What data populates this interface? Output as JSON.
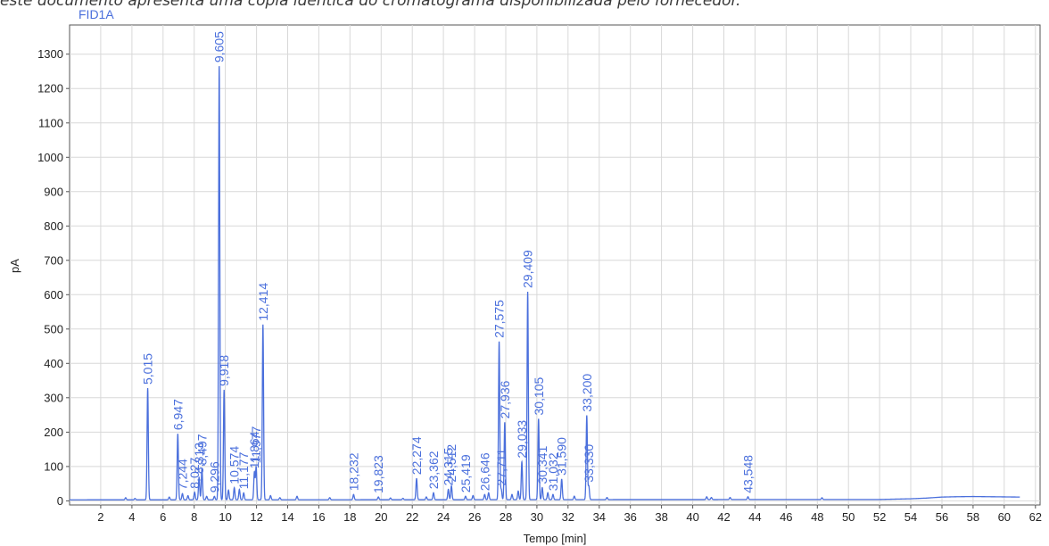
{
  "caption": "este documento apresenta uma cópia idêntica do cromatograma disponibilizada pelo fornecedor.",
  "colors": {
    "trace": "#4a6fdc",
    "grid": "#d8d8d8",
    "axis": "#555555",
    "text": "#222222"
  },
  "chart_data": {
    "type": "line",
    "series_label": "FID1A",
    "xlabel": "Tempo [min]",
    "ylabel": "pA",
    "xlim": [
      0,
      62.3
    ],
    "ylim": [
      -12,
      1385
    ],
    "grid": true,
    "x_ticks": [
      2,
      4,
      6,
      8,
      10,
      12,
      14,
      16,
      18,
      20,
      22,
      24,
      26,
      28,
      30,
      32,
      34,
      36,
      38,
      40,
      42,
      44,
      46,
      48,
      50,
      52,
      54,
      56,
      58,
      60,
      62
    ],
    "y_ticks": [
      0,
      100,
      200,
      300,
      400,
      500,
      600,
      700,
      800,
      900,
      1000,
      1100,
      1200,
      1300
    ],
    "baseline": [
      [
        0,
        3
      ],
      [
        52,
        4
      ],
      [
        54,
        6
      ],
      [
        55,
        8
      ],
      [
        56,
        11
      ],
      [
        57,
        12
      ],
      [
        58,
        12.5
      ],
      [
        59,
        12
      ],
      [
        61,
        11
      ]
    ],
    "peaks": [
      {
        "label": "5,015",
        "rt": 5.015,
        "height": 325
      },
      {
        "label": "6,947",
        "rt": 6.947,
        "height": 192
      },
      {
        "label": "7,244",
        "rt": 7.244,
        "height": 18
      },
      {
        "label": "8,313",
        "rt": 8.313,
        "height": 65
      },
      {
        "label": "8,027",
        "rt": 8.027,
        "height": 22
      },
      {
        "label": "8,497",
        "rt": 8.497,
        "height": 90
      },
      {
        "label": "9,605",
        "rt": 9.605,
        "height": 1262
      },
      {
        "label": "9,918",
        "rt": 9.918,
        "height": 320
      },
      {
        "label": "9,296",
        "rt": 9.296,
        "height": 10
      },
      {
        "label": "10,574",
        "rt": 10.574,
        "height": 35
      },
      {
        "label": "11,177",
        "rt": 11.177,
        "height": 20
      },
      {
        "label": "11,864",
        "rt": 11.864,
        "height": 80
      },
      {
        "label": "11,977",
        "rt": 11.977,
        "height": 95
      },
      {
        "label": "12,414",
        "rt": 12.414,
        "height": 510
      },
      {
        "label": "18,232",
        "rt": 18.232,
        "height": 15
      },
      {
        "label": "19,823",
        "rt": 19.823,
        "height": 8
      },
      {
        "label": "22,274",
        "rt": 22.274,
        "height": 62
      },
      {
        "label": "23,362",
        "rt": 23.362,
        "height": 20
      },
      {
        "label": "24,315",
        "rt": 24.315,
        "height": 30
      },
      {
        "label": "24,512",
        "rt": 24.512,
        "height": 40
      },
      {
        "label": "25,419",
        "rt": 25.419,
        "height": 10
      },
      {
        "label": "26,646",
        "rt": 26.646,
        "height": 15
      },
      {
        "label": "27,575",
        "rt": 27.575,
        "height": 460
      },
      {
        "label": "27,711",
        "rt": 27.711,
        "height": 30
      },
      {
        "label": "27,936",
        "rt": 27.936,
        "height": 225
      },
      {
        "label": "29,033",
        "rt": 29.033,
        "height": 110
      },
      {
        "label": "29,409",
        "rt": 29.409,
        "height": 605
      },
      {
        "label": "30,105",
        "rt": 30.105,
        "height": 235
      },
      {
        "label": "30,341",
        "rt": 30.341,
        "height": 35
      },
      {
        "label": "31,032",
        "rt": 31.032,
        "height": 15
      },
      {
        "label": "31,590",
        "rt": 31.59,
        "height": 60
      },
      {
        "label": "33,200",
        "rt": 33.2,
        "height": 245
      },
      {
        "label": "33,330",
        "rt": 33.33,
        "height": 40
      },
      {
        "label": "43,548",
        "rt": 43.548,
        "height": 8
      }
    ],
    "minor_peaks": [
      {
        "rt": 3.6,
        "height": 6
      },
      {
        "rt": 4.2,
        "height": 4
      },
      {
        "rt": 6.4,
        "height": 8
      },
      {
        "rt": 7.6,
        "height": 12
      },
      {
        "rt": 8.8,
        "height": 10
      },
      {
        "rt": 10.2,
        "height": 28
      },
      {
        "rt": 10.9,
        "height": 30
      },
      {
        "rt": 12.9,
        "height": 12
      },
      {
        "rt": 13.5,
        "height": 6
      },
      {
        "rt": 14.6,
        "height": 10
      },
      {
        "rt": 16.7,
        "height": 6
      },
      {
        "rt": 20.6,
        "height": 5
      },
      {
        "rt": 21.4,
        "height": 4
      },
      {
        "rt": 22.9,
        "height": 8
      },
      {
        "rt": 25.9,
        "height": 12
      },
      {
        "rt": 26.9,
        "height": 20
      },
      {
        "rt": 28.4,
        "height": 15
      },
      {
        "rt": 28.8,
        "height": 25
      },
      {
        "rt": 30.7,
        "height": 20
      },
      {
        "rt": 32.4,
        "height": 10
      },
      {
        "rt": 34.5,
        "height": 6
      },
      {
        "rt": 40.9,
        "height": 8
      },
      {
        "rt": 41.2,
        "height": 6
      },
      {
        "rt": 42.4,
        "height": 6
      },
      {
        "rt": 48.3,
        "height": 5
      }
    ]
  }
}
